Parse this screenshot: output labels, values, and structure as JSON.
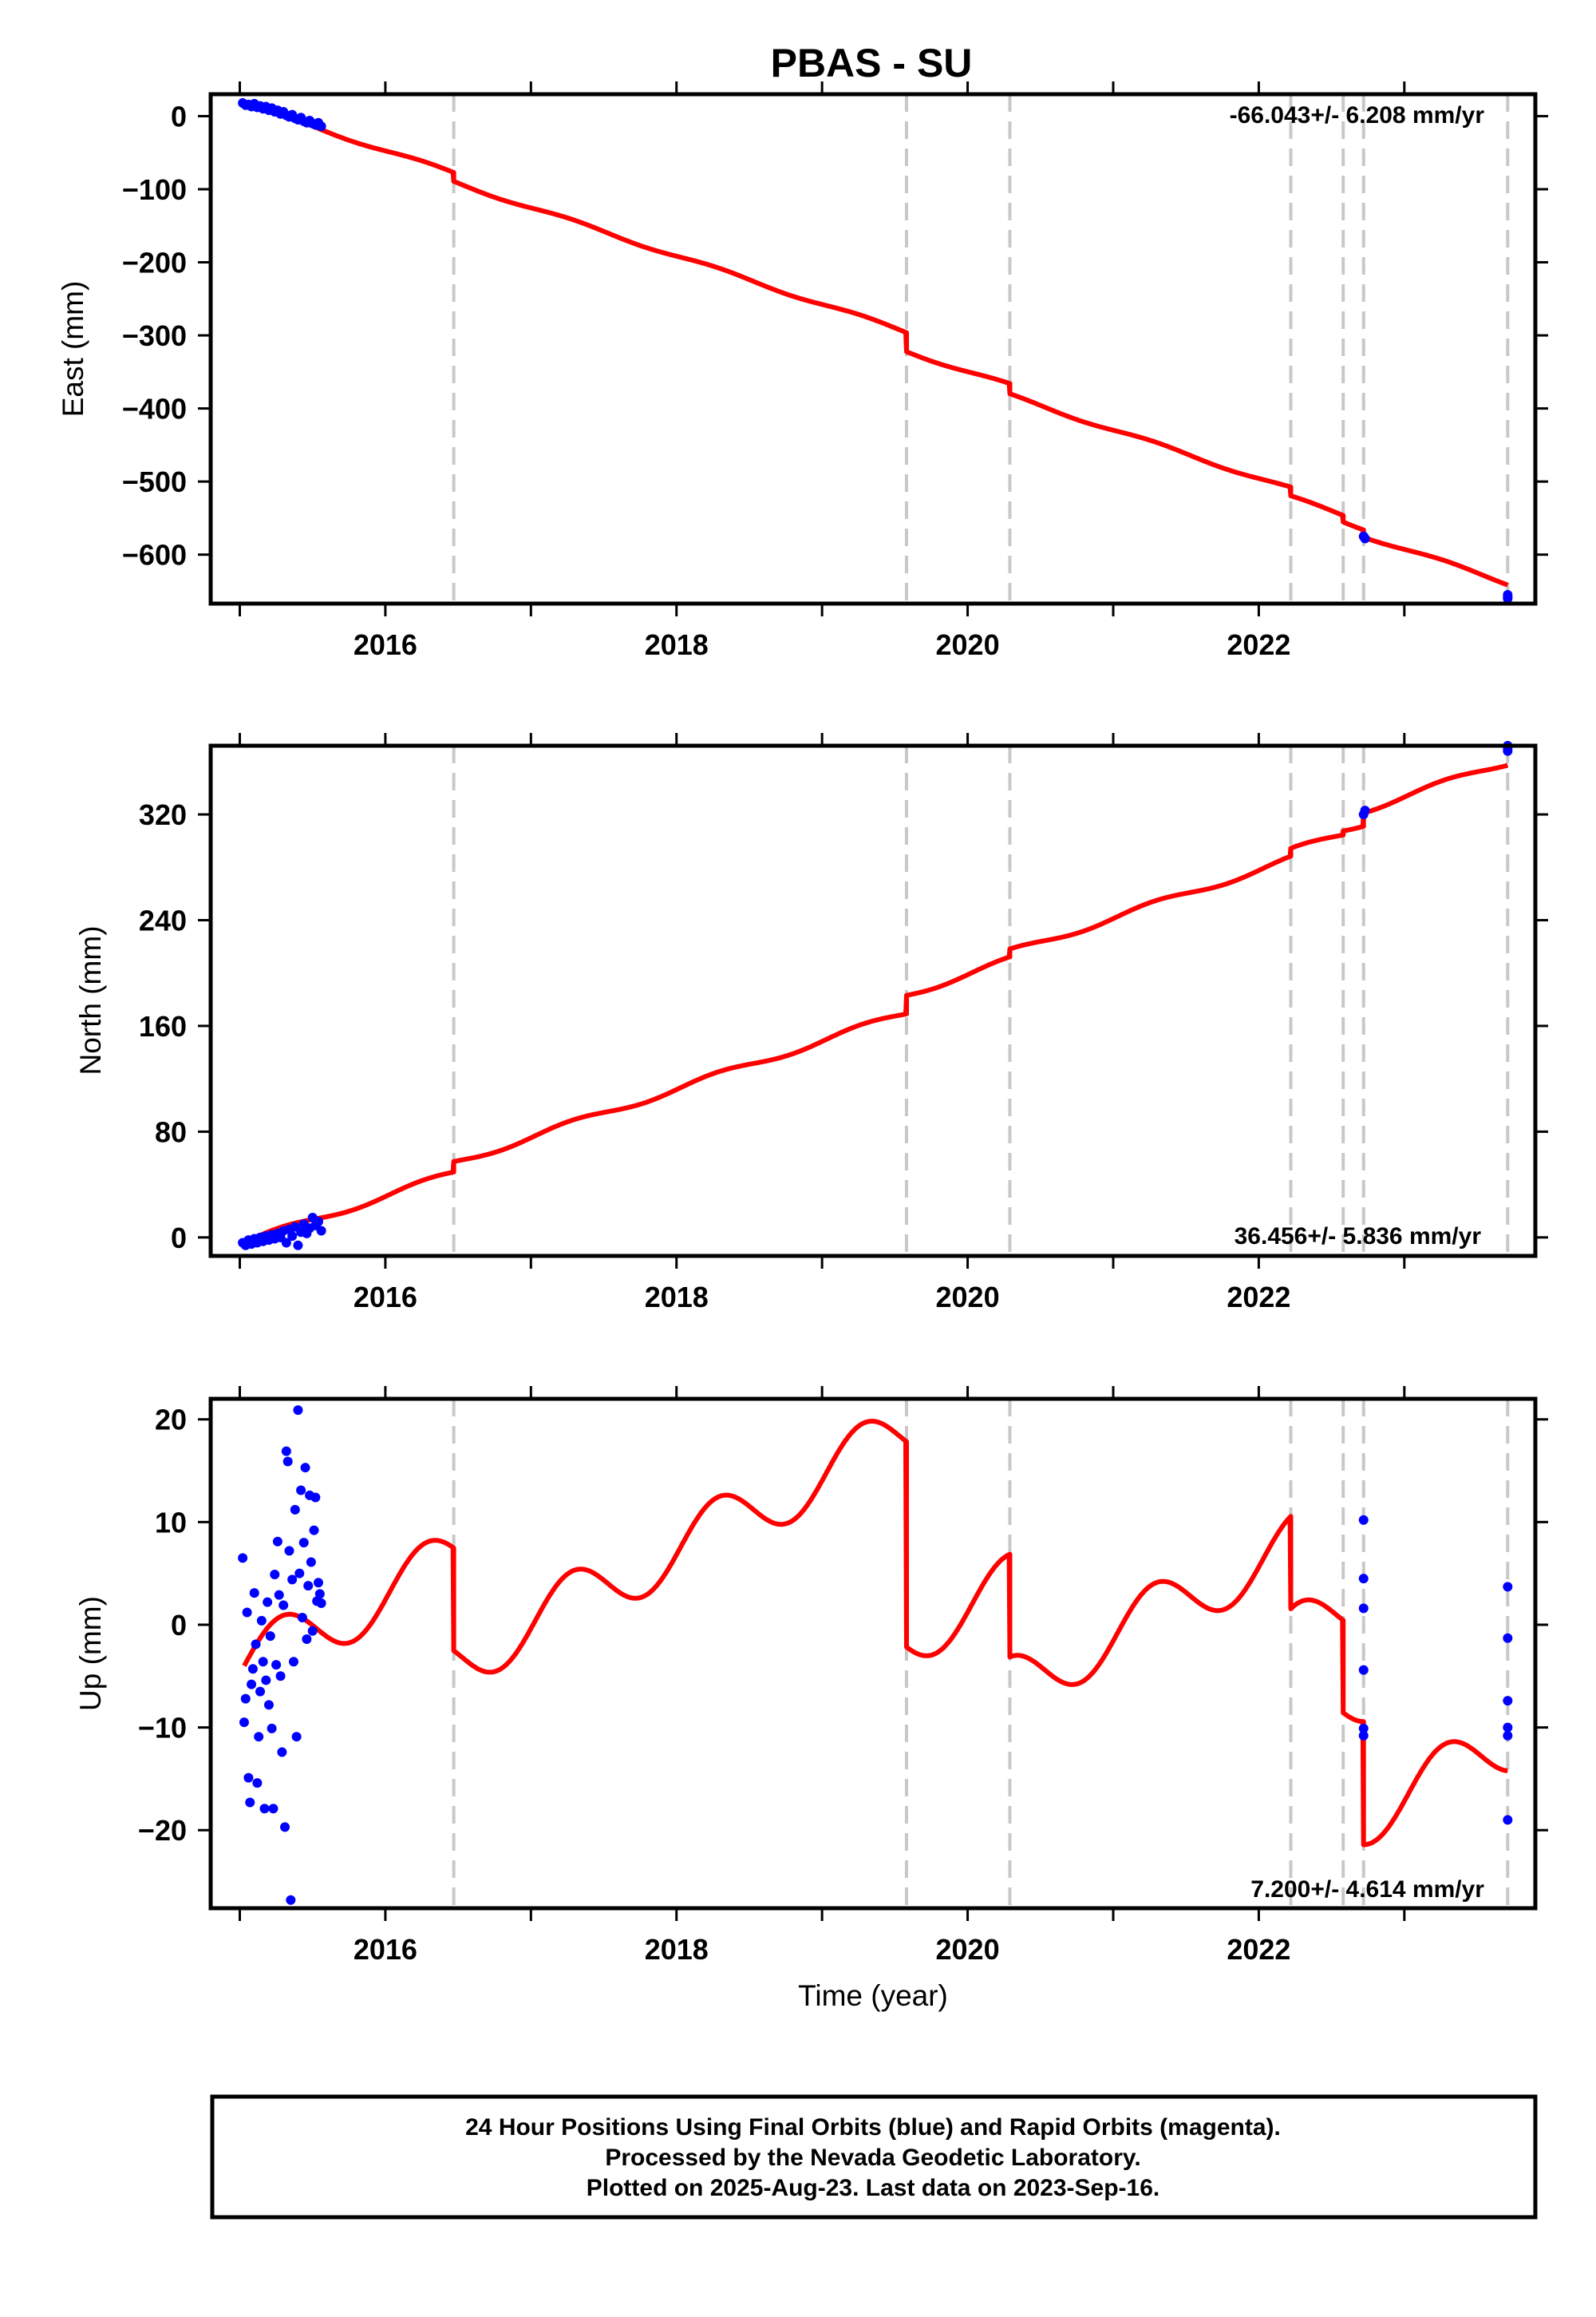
{
  "title": "PBAS - SU",
  "colors": {
    "final_orbits": "#0000ff",
    "rapid_orbits": "#ff00ff",
    "model": "#ff0000",
    "event_lines": "#c8c8c8",
    "frame": "#000000"
  },
  "x_axis": {
    "label": "Time (year)",
    "range": [
      2014.8,
      2023.9
    ],
    "ticks": [
      2016,
      2018,
      2020,
      2022
    ],
    "minor_ticks": [
      2015,
      2016,
      2017,
      2018,
      2019,
      2020,
      2021,
      2022,
      2023
    ]
  },
  "events": [
    2016.47,
    2019.58,
    2020.29,
    2022.22,
    2022.58,
    2022.72,
    2023.71
  ],
  "chart_data": [
    {
      "type": "scatter",
      "component": "East",
      "ylabel": "East (mm)",
      "ylim": [
        -667,
        30
      ],
      "yticks": [
        0,
        -100,
        -200,
        -300,
        -400,
        -500,
        -600
      ],
      "rate_text": "-66.043+/- 6.208 mm/yr",
      "rate_position": "top-right",
      "model": {
        "rate": -66.043,
        "offset_at_start": 17,
        "start": 2015.03,
        "end": 2023.71,
        "annual_amp": 2.5,
        "steps": [
          {
            "t": 2016.47,
            "dy": -12
          },
          {
            "t": 2019.58,
            "dy": -26
          },
          {
            "t": 2020.29,
            "dy": -14
          },
          {
            "t": 2022.22,
            "dy": -12
          },
          {
            "t": 2022.58,
            "dy": -9
          },
          {
            "t": 2022.72,
            "dy": -10
          }
        ]
      },
      "final_points": [
        [
          2015.02,
          18
        ],
        [
          2015.04,
          15
        ],
        [
          2015.06,
          16
        ],
        [
          2015.08,
          13
        ],
        [
          2015.1,
          17
        ],
        [
          2015.12,
          12
        ],
        [
          2015.14,
          14
        ],
        [
          2015.16,
          10
        ],
        [
          2015.18,
          13
        ],
        [
          2015.2,
          8
        ],
        [
          2015.22,
          11
        ],
        [
          2015.24,
          6
        ],
        [
          2015.26,
          8
        ],
        [
          2015.28,
          3
        ],
        [
          2015.3,
          6
        ],
        [
          2015.32,
          1
        ],
        [
          2015.34,
          -1
        ],
        [
          2015.36,
          2
        ],
        [
          2015.38,
          -3
        ],
        [
          2015.4,
          -5
        ],
        [
          2015.42,
          -2
        ],
        [
          2015.44,
          -7
        ],
        [
          2015.46,
          -9
        ],
        [
          2015.48,
          -6
        ],
        [
          2015.5,
          -10
        ],
        [
          2015.52,
          -12
        ],
        [
          2015.54,
          -9
        ],
        [
          2015.56,
          -14
        ],
        [
          2022.72,
          -575
        ],
        [
          2022.73,
          -578
        ],
        [
          2023.71,
          -655
        ],
        [
          2023.71,
          -658
        ],
        [
          2023.71,
          -660
        ]
      ],
      "rapid_points": []
    },
    {
      "type": "scatter",
      "component": "North",
      "ylabel": "North (mm)",
      "ylim": [
        -14,
        372
      ],
      "yticks": [
        0,
        80,
        160,
        240,
        320
      ],
      "rate_text": "36.456+/- 5.836 mm/yr",
      "rate_position": "bottom-right",
      "model": {
        "rate": 36.456,
        "offset_at_start": -4,
        "start": 2015.03,
        "end": 2023.71,
        "annual_amp": 2.5,
        "steps": [
          {
            "t": 2016.47,
            "dy": 8
          },
          {
            "t": 2019.58,
            "dy": 14
          },
          {
            "t": 2020.29,
            "dy": 6
          },
          {
            "t": 2022.22,
            "dy": 6
          },
          {
            "t": 2022.58,
            "dy": 3
          },
          {
            "t": 2022.72,
            "dy": 10
          }
        ]
      },
      "final_points": [
        [
          2015.02,
          -4
        ],
        [
          2015.04,
          -6
        ],
        [
          2015.06,
          -2
        ],
        [
          2015.08,
          -5
        ],
        [
          2015.1,
          -1
        ],
        [
          2015.12,
          -4
        ],
        [
          2015.14,
          0
        ],
        [
          2015.16,
          -3
        ],
        [
          2015.18,
          1
        ],
        [
          2015.2,
          -2
        ],
        [
          2015.22,
          2
        ],
        [
          2015.24,
          -1
        ],
        [
          2015.26,
          3
        ],
        [
          2015.28,
          0
        ],
        [
          2015.3,
          5
        ],
        [
          2015.32,
          -4
        ],
        [
          2015.34,
          6
        ],
        [
          2015.36,
          1
        ],
        [
          2015.38,
          8
        ],
        [
          2015.4,
          -6
        ],
        [
          2015.42,
          4
        ],
        [
          2015.44,
          10
        ],
        [
          2015.46,
          3
        ],
        [
          2015.48,
          7
        ],
        [
          2015.5,
          15
        ],
        [
          2015.52,
          9
        ],
        [
          2015.54,
          12
        ],
        [
          2015.56,
          5
        ],
        [
          2022.72,
          320
        ],
        [
          2022.73,
          323
        ],
        [
          2023.71,
          368
        ],
        [
          2023.71,
          370
        ],
        [
          2023.71,
          372
        ]
      ],
      "rapid_points": []
    },
    {
      "type": "scatter",
      "component": "Up",
      "ylabel": "Up (mm)",
      "ylim": [
        -27.6,
        22
      ],
      "yticks": [
        20,
        10,
        0,
        -10,
        -20
      ],
      "rate_text": "7.200+/- 4.614 mm/yr",
      "rate_position": "bottom-right",
      "model": {
        "rate": 7.2,
        "offset_at_start": -4,
        "start": 2015.03,
        "end": 2023.71,
        "annual_amp": 3.0,
        "steps": [
          {
            "t": 2016.47,
            "dy": -10
          },
          {
            "t": 2019.58,
            "dy": -20
          },
          {
            "t": 2020.29,
            "dy": -10
          },
          {
            "t": 2022.22,
            "dy": -9
          },
          {
            "t": 2022.58,
            "dy": -9
          },
          {
            "t": 2022.72,
            "dy": -12
          }
        ]
      },
      "final_points": [
        [
          2015.02,
          6.5
        ],
        [
          2015.03,
          -9.5
        ],
        [
          2015.04,
          -7.2
        ],
        [
          2015.05,
          1.2
        ],
        [
          2015.06,
          -14.9
        ],
        [
          2015.07,
          -17.3
        ],
        [
          2015.08,
          -5.8
        ],
        [
          2015.09,
          -4.3
        ],
        [
          2015.1,
          3.1
        ],
        [
          2015.11,
          -1.9
        ],
        [
          2015.12,
          -15.4
        ],
        [
          2015.13,
          -10.9
        ],
        [
          2015.14,
          -6.5
        ],
        [
          2015.15,
          0.4
        ],
        [
          2015.16,
          -3.6
        ],
        [
          2015.17,
          -17.9
        ],
        [
          2015.18,
          -5.4
        ],
        [
          2015.19,
          2.2
        ],
        [
          2015.2,
          -7.8
        ],
        [
          2015.21,
          -1.1
        ],
        [
          2015.22,
          -10.1
        ],
        [
          2015.23,
          -17.9
        ],
        [
          2015.24,
          4.9
        ],
        [
          2015.25,
          -3.9
        ],
        [
          2015.26,
          8.1
        ],
        [
          2015.27,
          2.9
        ],
        [
          2015.28,
          -5.0
        ],
        [
          2015.29,
          -12.4
        ],
        [
          2015.3,
          1.9
        ],
        [
          2015.31,
          -19.7
        ],
        [
          2015.32,
          16.9
        ],
        [
          2015.33,
          15.9
        ],
        [
          2015.34,
          7.2
        ],
        [
          2015.35,
          -26.8
        ],
        [
          2015.36,
          4.4
        ],
        [
          2015.37,
          -3.6
        ],
        [
          2015.38,
          11.2
        ],
        [
          2015.39,
          -10.9
        ],
        [
          2015.4,
          20.9
        ],
        [
          2015.41,
          5.0
        ],
        [
          2015.42,
          13.1
        ],
        [
          2015.43,
          0.7
        ],
        [
          2015.44,
          8.0
        ],
        [
          2015.45,
          15.3
        ],
        [
          2015.46,
          -1.4
        ],
        [
          2015.47,
          3.8
        ],
        [
          2015.48,
          12.6
        ],
        [
          2015.49,
          6.1
        ],
        [
          2015.5,
          -0.6
        ],
        [
          2015.51,
          9.2
        ],
        [
          2015.52,
          12.4
        ],
        [
          2015.53,
          2.3
        ],
        [
          2015.54,
          4.1
        ],
        [
          2015.55,
          3.0
        ],
        [
          2015.56,
          2.1
        ],
        [
          2022.72,
          10.2
        ],
        [
          2022.72,
          4.5
        ],
        [
          2022.72,
          1.6
        ],
        [
          2022.72,
          -4.4
        ],
        [
          2022.72,
          -10.1
        ],
        [
          2022.72,
          -10.8
        ],
        [
          2023.71,
          3.7
        ],
        [
          2023.71,
          -1.3
        ],
        [
          2023.71,
          -7.4
        ],
        [
          2023.71,
          -10.0
        ],
        [
          2023.71,
          -10.8
        ],
        [
          2023.71,
          -19.0
        ]
      ],
      "rapid_points": []
    }
  ],
  "footer": {
    "line1": "24 Hour Positions Using Final Orbits (blue) and Rapid Orbits (magenta).",
    "line2": "Processed by the Nevada Geodetic Laboratory.",
    "line3": "Plotted on 2025-Aug-23. Last data on 2023-Sep-16."
  }
}
